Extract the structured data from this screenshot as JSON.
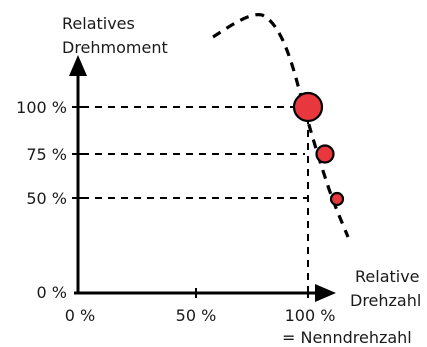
{
  "y_axis_label": [
    "Relatives",
    "Drehmoment"
  ],
  "x_axis_label": [
    "Relative",
    "Drehzahl"
  ],
  "x_note": "= Nenndrehzahl",
  "y_ticks": [
    {
      "label": "100 %",
      "value": 100
    },
    {
      "label": "75 %",
      "value": 75
    },
    {
      "label": "50 %",
      "value": 50
    },
    {
      "label": "0 %",
      "value": 0
    }
  ],
  "x_ticks": [
    {
      "label": "0 %",
      "value": 0
    },
    {
      "label": "50 %",
      "value": 50
    },
    {
      "label": "100 %",
      "value": 100
    }
  ],
  "points": [
    {
      "speed": 100,
      "torque": 100
    },
    {
      "speed": 108,
      "torque": 75
    },
    {
      "speed": 113,
      "torque": 50
    }
  ],
  "colors": {
    "axis": "#000000",
    "point_fill": "#e8383d",
    "point_stroke": "#000000"
  }
}
